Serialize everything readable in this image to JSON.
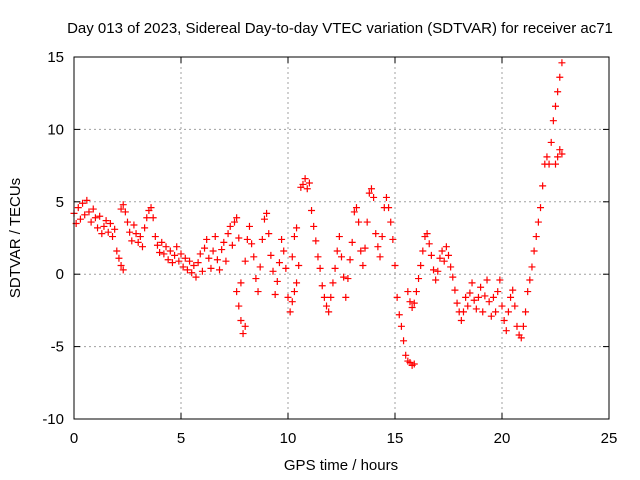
{
  "chart_data": {
    "type": "scatter",
    "title": "Day 013 of 2023, Sidereal Day-to-day VTEC variation (SDTVAR) for receiver ac71",
    "xlabel": "GPS time / hours",
    "ylabel": "SDTVAR / TECUs",
    "xlim": [
      0,
      25
    ],
    "ylim": [
      -10,
      15
    ],
    "xticks": [
      0,
      5,
      10,
      15,
      20,
      25
    ],
    "xtick_labels": [
      "0",
      "5",
      "10",
      "15",
      "20",
      "25"
    ],
    "yticks": [
      -10,
      -5,
      0,
      5,
      10,
      15
    ],
    "ytick_labels": [
      "-10",
      "-5",
      "0",
      "5",
      "10",
      "15"
    ],
    "grid": true,
    "marker": "plus",
    "color": "#ff0000",
    "series": [
      {
        "name": "SDTVAR",
        "points": [
          [
            0.0,
            4.2
          ],
          [
            0.1,
            3.5
          ],
          [
            0.2,
            4.6
          ],
          [
            0.3,
            3.8
          ],
          [
            0.4,
            4.9
          ],
          [
            0.5,
            4.1
          ],
          [
            0.6,
            5.1
          ],
          [
            0.7,
            4.3
          ],
          [
            0.8,
            3.6
          ],
          [
            0.9,
            4.5
          ],
          [
            1.0,
            3.9
          ],
          [
            1.1,
            3.2
          ],
          [
            1.2,
            4.0
          ],
          [
            1.3,
            2.8
          ],
          [
            1.4,
            3.3
          ],
          [
            1.5,
            3.7
          ],
          [
            1.6,
            2.9
          ],
          [
            1.7,
            3.5
          ],
          [
            1.8,
            2.6
          ],
          [
            1.9,
            3.1
          ],
          [
            2.0,
            1.6
          ],
          [
            2.1,
            1.1
          ],
          [
            2.2,
            0.6
          ],
          [
            2.3,
            0.3
          ],
          [
            2.2,
            4.5
          ],
          [
            2.3,
            4.8
          ],
          [
            2.4,
            4.3
          ],
          [
            2.5,
            3.6
          ],
          [
            2.6,
            2.9
          ],
          [
            2.7,
            2.3
          ],
          [
            2.8,
            3.4
          ],
          [
            2.9,
            2.8
          ],
          [
            3.0,
            2.2
          ],
          [
            3.1,
            2.6
          ],
          [
            3.2,
            1.9
          ],
          [
            3.3,
            3.2
          ],
          [
            3.4,
            3.9
          ],
          [
            3.5,
            4.4
          ],
          [
            3.6,
            4.6
          ],
          [
            3.7,
            3.9
          ],
          [
            3.8,
            2.6
          ],
          [
            3.9,
            2.0
          ],
          [
            4.0,
            1.5
          ],
          [
            4.1,
            2.2
          ],
          [
            4.2,
            1.4
          ],
          [
            4.3,
            1.9
          ],
          [
            4.4,
            1.0
          ],
          [
            4.5,
            1.6
          ],
          [
            4.6,
            0.8
          ],
          [
            4.7,
            1.3
          ],
          [
            4.8,
            1.9
          ],
          [
            4.9,
            0.9
          ],
          [
            5.0,
            1.4
          ],
          [
            5.1,
            0.5
          ],
          [
            5.2,
            1.1
          ],
          [
            5.3,
            0.3
          ],
          [
            5.4,
            0.9
          ],
          [
            5.5,
            0.1
          ],
          [
            5.6,
            0.6
          ],
          [
            5.7,
            -0.2
          ],
          [
            5.8,
            0.8
          ],
          [
            5.9,
            1.4
          ],
          [
            6.0,
            0.2
          ],
          [
            6.1,
            1.8
          ],
          [
            6.2,
            2.4
          ],
          [
            6.3,
            1.1
          ],
          [
            6.4,
            0.4
          ],
          [
            6.5,
            1.6
          ],
          [
            6.6,
            2.6
          ],
          [
            6.7,
            1.0
          ],
          [
            6.8,
            0.3
          ],
          [
            6.9,
            1.7
          ],
          [
            7.0,
            2.2
          ],
          [
            7.1,
            0.9
          ],
          [
            7.2,
            2.8
          ],
          [
            7.3,
            3.3
          ],
          [
            7.4,
            2.0
          ],
          [
            7.5,
            3.6
          ],
          [
            7.6,
            3.9
          ],
          [
            7.7,
            2.5
          ],
          [
            7.6,
            -1.2
          ],
          [
            7.7,
            -2.2
          ],
          [
            7.8,
            -3.2
          ],
          [
            7.9,
            -4.1
          ],
          [
            8.0,
            -3.6
          ],
          [
            7.8,
            -0.6
          ],
          [
            8.0,
            0.9
          ],
          [
            8.1,
            2.4
          ],
          [
            8.2,
            3.3
          ],
          [
            8.3,
            2.1
          ],
          [
            8.4,
            1.2
          ],
          [
            8.5,
            -0.3
          ],
          [
            8.6,
            -1.2
          ],
          [
            8.7,
            0.5
          ],
          [
            8.8,
            2.4
          ],
          [
            8.9,
            3.8
          ],
          [
            9.0,
            4.2
          ],
          [
            9.1,
            2.8
          ],
          [
            9.2,
            1.3
          ],
          [
            9.3,
            0.2
          ],
          [
            9.4,
            -1.4
          ],
          [
            9.5,
            -0.5
          ],
          [
            9.6,
            0.8
          ],
          [
            9.7,
            2.4
          ],
          [
            9.8,
            1.6
          ],
          [
            9.9,
            0.4
          ],
          [
            10.0,
            -1.6
          ],
          [
            10.1,
            -2.6
          ],
          [
            10.2,
            -1.9
          ],
          [
            10.3,
            -1.2
          ],
          [
            10.4,
            -0.6
          ],
          [
            10.5,
            0.6
          ],
          [
            10.2,
            1.2
          ],
          [
            10.3,
            2.6
          ],
          [
            10.4,
            3.2
          ],
          [
            10.6,
            6.0
          ],
          [
            10.7,
            6.2
          ],
          [
            10.8,
            6.6
          ],
          [
            10.9,
            5.9
          ],
          [
            11.0,
            6.3
          ],
          [
            11.1,
            4.4
          ],
          [
            11.2,
            3.3
          ],
          [
            11.3,
            2.3
          ],
          [
            11.4,
            1.2
          ],
          [
            11.5,
            0.4
          ],
          [
            11.6,
            -0.8
          ],
          [
            11.7,
            -1.6
          ],
          [
            11.8,
            -2.2
          ],
          [
            11.9,
            -2.6
          ],
          [
            12.0,
            -1.6
          ],
          [
            12.1,
            -0.6
          ],
          [
            12.2,
            0.4
          ],
          [
            12.3,
            1.6
          ],
          [
            12.4,
            2.6
          ],
          [
            12.5,
            1.2
          ],
          [
            12.6,
            -0.2
          ],
          [
            12.7,
            -1.6
          ],
          [
            12.8,
            -0.3
          ],
          [
            12.9,
            1.0
          ],
          [
            13.0,
            2.2
          ],
          [
            13.1,
            4.3
          ],
          [
            13.2,
            4.6
          ],
          [
            13.3,
            3.6
          ],
          [
            13.4,
            1.6
          ],
          [
            13.5,
            0.6
          ],
          [
            13.6,
            1.8
          ],
          [
            13.7,
            3.6
          ],
          [
            13.8,
            5.6
          ],
          [
            13.9,
            5.9
          ],
          [
            14.0,
            5.3
          ],
          [
            14.1,
            2.8
          ],
          [
            14.2,
            1.9
          ],
          [
            14.3,
            1.2
          ],
          [
            14.4,
            2.6
          ],
          [
            14.5,
            4.6
          ],
          [
            14.6,
            5.3
          ],
          [
            14.7,
            4.6
          ],
          [
            14.8,
            3.6
          ],
          [
            14.9,
            2.4
          ],
          [
            15.0,
            0.6
          ],
          [
            15.1,
            -1.6
          ],
          [
            15.2,
            -2.8
          ],
          [
            15.3,
            -3.6
          ],
          [
            15.4,
            -4.6
          ],
          [
            15.5,
            -5.6
          ],
          [
            15.6,
            -6.0
          ],
          [
            15.7,
            -6.1
          ],
          [
            15.8,
            -6.3
          ],
          [
            15.9,
            -6.2
          ],
          [
            15.6,
            -1.2
          ],
          [
            15.7,
            -1.9
          ],
          [
            15.8,
            -2.3
          ],
          [
            15.9,
            -2.0
          ],
          [
            16.0,
            -1.2
          ],
          [
            16.1,
            -0.3
          ],
          [
            16.2,
            0.6
          ],
          [
            16.3,
            1.6
          ],
          [
            16.4,
            2.6
          ],
          [
            16.5,
            2.8
          ],
          [
            16.6,
            2.1
          ],
          [
            16.7,
            1.3
          ],
          [
            16.8,
            0.3
          ],
          [
            16.9,
            -0.4
          ],
          [
            17.0,
            0.2
          ],
          [
            17.1,
            1.1
          ],
          [
            17.2,
            1.6
          ],
          [
            17.3,
            0.9
          ],
          [
            17.4,
            1.9
          ],
          [
            17.5,
            1.3
          ],
          [
            17.6,
            0.5
          ],
          [
            17.7,
            -0.2
          ],
          [
            17.8,
            -1.1
          ],
          [
            17.9,
            -2.0
          ],
          [
            18.0,
            -2.6
          ],
          [
            18.1,
            -3.2
          ],
          [
            18.2,
            -2.6
          ],
          [
            18.3,
            -1.6
          ],
          [
            18.4,
            -2.2
          ],
          [
            18.5,
            -1.3
          ],
          [
            18.6,
            -0.6
          ],
          [
            18.7,
            -1.8
          ],
          [
            18.8,
            -2.4
          ],
          [
            18.9,
            -1.6
          ],
          [
            19.0,
            -0.9
          ],
          [
            19.1,
            -2.6
          ],
          [
            19.2,
            -1.5
          ],
          [
            19.3,
            -0.4
          ],
          [
            19.4,
            -1.9
          ],
          [
            19.5,
            -2.9
          ],
          [
            19.6,
            -1.6
          ],
          [
            19.7,
            -2.6
          ],
          [
            19.8,
            -1.2
          ],
          [
            19.9,
            -0.4
          ],
          [
            20.0,
            -2.2
          ],
          [
            20.1,
            -3.2
          ],
          [
            20.2,
            -3.9
          ],
          [
            20.3,
            -2.6
          ],
          [
            20.4,
            -1.6
          ],
          [
            20.5,
            -1.1
          ],
          [
            20.6,
            -2.2
          ],
          [
            20.7,
            -3.6
          ],
          [
            20.8,
            -4.2
          ],
          [
            20.9,
            -4.4
          ],
          [
            21.0,
            -3.6
          ],
          [
            21.1,
            -2.6
          ],
          [
            21.2,
            -1.2
          ],
          [
            21.3,
            -0.4
          ],
          [
            21.4,
            0.5
          ],
          [
            21.5,
            1.6
          ],
          [
            21.6,
            2.6
          ],
          [
            21.7,
            3.6
          ],
          [
            21.8,
            4.6
          ],
          [
            21.9,
            6.1
          ],
          [
            22.0,
            7.6
          ],
          [
            22.1,
            8.1
          ],
          [
            22.2,
            7.6
          ],
          [
            22.3,
            9.1
          ],
          [
            22.4,
            10.6
          ],
          [
            22.5,
            11.6
          ],
          [
            22.6,
            12.6
          ],
          [
            22.7,
            13.6
          ],
          [
            22.8,
            14.6
          ],
          [
            22.5,
            7.6
          ],
          [
            22.6,
            8.1
          ],
          [
            22.7,
            8.6
          ],
          [
            22.8,
            8.3
          ]
        ]
      }
    ]
  }
}
